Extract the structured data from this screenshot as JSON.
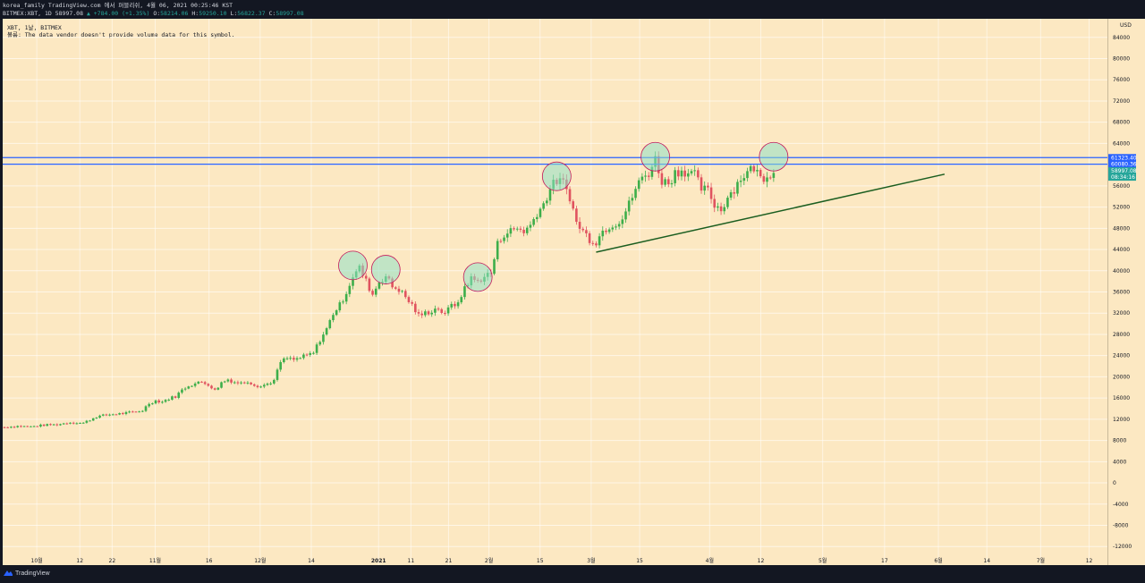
{
  "header": {
    "line1": "korea_family TradingView.com 에서 퍼블리쉬, 4월 06, 2021 00:25:46 KST",
    "symbol": "BITMEX:XBT, 1D 58997.08",
    "change": "▲ +784.00 (+1.35%)",
    "o_label": "O:",
    "o": "58214.06",
    "h_label": "H:",
    "h": "59250.10",
    "l_label": "L:",
    "l": "56822.37",
    "c_label": "C:",
    "c": "58997.08"
  },
  "legend": {
    "title": "XBT, 1날, BITMEX",
    "volume_note": "볼륨: The data vendor doesn't provide volume data for this symbol."
  },
  "footer": {
    "brand": "TradingView"
  },
  "colors": {
    "background": "#fce8c2",
    "up": "#26a69a",
    "down": "#ef5350",
    "candle_up": "#3dae4a",
    "candle_down": "#e0535f",
    "hline": "#2962ff",
    "trendline": "#1b5e20",
    "circle_fill": "#8fe0c9",
    "circle_stroke": "#c2185b"
  },
  "chart_data": {
    "type": "candlestick",
    "title": "XBT, 1날, BITMEX",
    "ylabel": "USD",
    "ylim": [
      -15500,
      87500
    ],
    "yticks": [
      84000,
      80000,
      76000,
      72000,
      68000,
      64000,
      60000,
      56000,
      52000,
      48000,
      44000,
      40000,
      36000,
      32000,
      28000,
      24000,
      20000,
      16000,
      12000,
      8000,
      4000,
      0,
      -4000,
      -8000,
      -12000
    ],
    "xlabels": [
      "10월",
      "12",
      "22",
      "11월",
      "16",
      "12월",
      "14",
      "2021",
      "11",
      "21",
      "2월",
      "15",
      "3월",
      "15",
      "4월",
      "12",
      "5월",
      "17",
      "6월",
      "14",
      "7월",
      "12"
    ],
    "series_points": [
      [
        0,
        10500
      ],
      [
        4,
        10700
      ],
      [
        8,
        10600
      ],
      [
        12,
        10900
      ],
      [
        16,
        11000
      ],
      [
        20,
        11400
      ],
      [
        24,
        11300
      ],
      [
        28,
        12500
      ],
      [
        32,
        12900
      ],
      [
        36,
        13100
      ],
      [
        40,
        13400
      ],
      [
        42,
        13700
      ],
      [
        44,
        15000
      ],
      [
        46,
        15500
      ],
      [
        48,
        15300
      ],
      [
        50,
        15900
      ],
      [
        52,
        16300
      ],
      [
        54,
        17500
      ],
      [
        56,
        18400
      ],
      [
        58,
        18700
      ],
      [
        60,
        19000
      ],
      [
        62,
        18600
      ],
      [
        64,
        17400
      ],
      [
        66,
        18900
      ],
      [
        68,
        19500
      ],
      [
        70,
        19000
      ],
      [
        72,
        18800
      ],
      [
        74,
        19200
      ],
      [
        76,
        18500
      ],
      [
        78,
        18200
      ],
      [
        80,
        18700
      ],
      [
        82,
        19300
      ],
      [
        84,
        22800
      ],
      [
        86,
        23500
      ],
      [
        88,
        23200
      ],
      [
        90,
        23600
      ],
      [
        92,
        24000
      ],
      [
        94,
        24500
      ],
      [
        96,
        27000
      ],
      [
        98,
        29000
      ],
      [
        100,
        32000
      ],
      [
        102,
        33500
      ],
      [
        104,
        36000
      ],
      [
        106,
        39000
      ],
      [
        108,
        40500
      ],
      [
        110,
        38000
      ],
      [
        112,
        35500
      ],
      [
        114,
        38000
      ],
      [
        116,
        39000
      ],
      [
        118,
        37000
      ],
      [
        120,
        36500
      ],
      [
        122,
        35000
      ],
      [
        124,
        33500
      ],
      [
        126,
        31500
      ],
      [
        128,
        32000
      ],
      [
        130,
        32500
      ],
      [
        132,
        33000
      ],
      [
        134,
        31500
      ],
      [
        136,
        34000
      ],
      [
        138,
        33500
      ],
      [
        140,
        37000
      ],
      [
        142,
        38500
      ],
      [
        144,
        38000
      ],
      [
        146,
        39000
      ],
      [
        148,
        39500
      ],
      [
        150,
        45000
      ],
      [
        152,
        47000
      ],
      [
        154,
        47500
      ],
      [
        156,
        48000
      ],
      [
        158,
        47500
      ],
      [
        160,
        48500
      ],
      [
        162,
        51000
      ],
      [
        164,
        52500
      ],
      [
        166,
        55500
      ],
      [
        168,
        57000
      ],
      [
        170,
        56500
      ],
      [
        172,
        54000
      ],
      [
        174,
        49000
      ],
      [
        176,
        47500
      ],
      [
        178,
        46000
      ],
      [
        180,
        45500
      ],
      [
        182,
        47500
      ],
      [
        184,
        48500
      ],
      [
        186,
        49000
      ],
      [
        188,
        50000
      ],
      [
        190,
        52500
      ],
      [
        192,
        55500
      ],
      [
        194,
        57500
      ],
      [
        196,
        58500
      ],
      [
        198,
        61000
      ],
      [
        200,
        57000
      ],
      [
        202,
        56500
      ],
      [
        204,
        58500
      ],
      [
        206,
        59000
      ],
      [
        208,
        58500
      ],
      [
        210,
        58000
      ],
      [
        212,
        55500
      ],
      [
        214,
        55000
      ],
      [
        216,
        52500
      ],
      [
        218,
        51500
      ],
      [
        220,
        54000
      ],
      [
        222,
        55500
      ],
      [
        224,
        57500
      ],
      [
        226,
        58500
      ],
      [
        228,
        59500
      ],
      [
        230,
        57500
      ],
      [
        232,
        58000
      ],
      [
        234,
        58997
      ]
    ],
    "horizontal_levels": [
      {
        "value": 61323.4,
        "label": "61323.40"
      },
      {
        "value": 60080.36,
        "label": "60080.36"
      }
    ],
    "last_price": {
      "value": 58997.08,
      "label": "58997.08",
      "countdown": "08:34:16"
    },
    "trendline": {
      "from": [
        180,
        43500
      ],
      "to": [
        286,
        58200
      ]
    },
    "highlight_points": [
      [
        106,
        41000
      ],
      [
        116,
        40200
      ],
      [
        144,
        38800
      ],
      [
        168,
        57800
      ],
      [
        198,
        61500
      ],
      [
        234,
        61500
      ]
    ]
  }
}
